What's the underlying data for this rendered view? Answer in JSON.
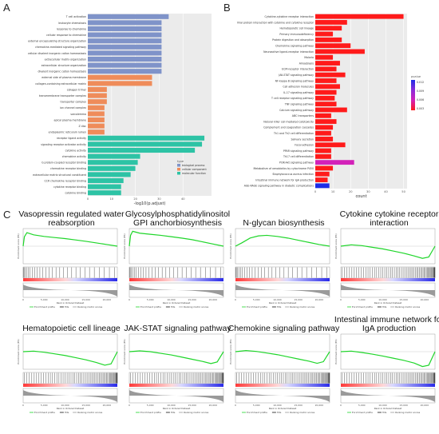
{
  "panels": {
    "a": "A",
    "b": "B",
    "c": "C"
  },
  "chart_data": [
    {
      "type": "bar",
      "orientation": "horizontal",
      "panel": "A",
      "xlabel": "-log10(p.adjust)",
      "xticks": [
        "0",
        "10",
        "20",
        "30",
        "40"
      ],
      "xlim": [
        0,
        52
      ],
      "legend": {
        "title": "type",
        "placement": "right",
        "entries": [
          {
            "name": "biological process",
            "color": "#7f93c9"
          },
          {
            "name": "cellular component",
            "color": "#ef8c5a"
          },
          {
            "name": "molecular function",
            "color": "#2dc3a5"
          }
        ]
      },
      "categories": [
        "T cell activation",
        "leukocyte chemotaxis",
        "response to chemokine",
        "cellular response to chemokine",
        "external encapsulating structure organization",
        "chemokine-mediated signaling pathway",
        "cellular divalent inorganic cation homeostasis",
        "extracellular matrix organization",
        "extracellular structure organization",
        "divalent inorganic cation homeostasis",
        "external side of plasma membrane",
        "collagen-containing extracellular matrix",
        "collagen trimer",
        "transmembrane transporter complex",
        "transporter complex",
        "ion channel complex",
        "sarcolemma",
        "apical plasma membrane",
        "Z disc",
        "endoplasmic reticulum lumen",
        "receptor ligand activity",
        "signaling receptor activator activity",
        "cytokine activity",
        "chemokine activity",
        "G protein-coupled receptor binding",
        "chemokine receptor binding",
        "extracellular matrix structural constituent",
        "CCR chemokine receptor binding",
        "cytokine receptor binding",
        "cytokine binding"
      ],
      "values": [
        34,
        31,
        31,
        31,
        31,
        31,
        31,
        31,
        31,
        31,
        27,
        27,
        8,
        8,
        8,
        7,
        7,
        7,
        7,
        7,
        49,
        48,
        45,
        22,
        21,
        20,
        18,
        15,
        14,
        14
      ],
      "groups": [
        "biological process",
        "biological process",
        "biological process",
        "biological process",
        "biological process",
        "biological process",
        "biological process",
        "biological process",
        "biological process",
        "biological process",
        "cellular component",
        "cellular component",
        "cellular component",
        "cellular component",
        "cellular component",
        "cellular component",
        "cellular component",
        "cellular component",
        "cellular component",
        "cellular component",
        "molecular function",
        "molecular function",
        "molecular function",
        "molecular function",
        "molecular function",
        "molecular function",
        "molecular function",
        "molecular function",
        "molecular function",
        "molecular function"
      ]
    },
    {
      "type": "bar",
      "orientation": "horizontal",
      "panel": "B",
      "xlabel": "count",
      "xticks": [
        "0",
        "10",
        "20",
        "30",
        "40",
        "50"
      ],
      "xlim": [
        0,
        52
      ],
      "legend": {
        "title": "pvalue",
        "placement": "right",
        "ticks": [
          "0.012",
          "0.009",
          "0.006",
          "0.003"
        ],
        "colors": [
          "#1d2de8",
          "#8c2bd9",
          "#d321b9",
          "#ff1a1a"
        ]
      },
      "categories": [
        "Cytokine-cytokine receptor interaction",
        "Viral protein interaction with cytokine and cytokine receptor",
        "Hematopoietic cell lineage",
        "Primary immunodeficiency",
        "Protein digestion and absorption",
        "Chemokine signaling pathway",
        "Neuroactive ligand-receptor interaction",
        "Malaria",
        "Amoebiasis",
        "ECM-receptor interaction",
        "JAK-STAT signaling pathway",
        "NF-kappa B signaling pathway",
        "Cell adhesion molecules",
        "IL-17 signaling pathway",
        "T cell receptor signaling pathway",
        "TNF signaling pathway",
        "Calcium signaling pathway",
        "ABC transporters",
        "Natural killer cell mediated cytotoxicity",
        "Complement and coagulation cascades",
        "Th1 and Th2 cell differentiation",
        "Salivary secretion",
        "Focal adhesion",
        "PPAR signaling pathway",
        "Th17 cell differentiation",
        "PI3K-Akt signaling pathway",
        "Metabolism of xenobiotics by cytochrome P450",
        "Staphylococcus aureus infection",
        "Intestinal immune network for IgA production",
        "AGE-RAGE signaling pathway in diabetic complications"
      ],
      "values": [
        50,
        18,
        15,
        10,
        15,
        20,
        28,
        10,
        14,
        12,
        17,
        12,
        14,
        12,
        11,
        12,
        18,
        9,
        12,
        10,
        9,
        10,
        17,
        9,
        9,
        22,
        10,
        8,
        7,
        8
      ],
      "pvalue_level": [
        0.003,
        0.003,
        0.003,
        0.003,
        0.003,
        0.003,
        0.003,
        0.003,
        0.003,
        0.003,
        0.003,
        0.003,
        0.003,
        0.003,
        0.003,
        0.003,
        0.003,
        0.003,
        0.003,
        0.003,
        0.003,
        0.003,
        0.003,
        0.003,
        0.003,
        0.006,
        0.003,
        0.003,
        0.003,
        0.012
      ]
    },
    {
      "type": "line",
      "panel": "C",
      "subtype": "gsea-enrichment",
      "ylabel": "Enrichment score (ES)",
      "xlabel": "Rank in Ordered Dataset",
      "ylabel2": "Ranked list metric (Signal2Noise)",
      "legend": [
        "Enrichment profile",
        "Hits",
        "Ranking metric scores"
      ],
      "xticks": [
        "0",
        "2,500",
        "5,000",
        "7,500",
        "10,000",
        "12,500",
        "15,000",
        "17,500",
        "20,000",
        "22,500"
      ],
      "plots": [
        {
          "title": "Vasopressin regulated water reabsorption",
          "direction": "up",
          "x": [
            0,
            300,
            900,
            2500,
            5000,
            7500,
            10000,
            12500,
            15000,
            17500,
            20000,
            22500
          ],
          "y": [
            0,
            0.35,
            0.5,
            0.42,
            0.36,
            0.32,
            0.28,
            0.23,
            0.18,
            0.12,
            0.06,
            0
          ]
        },
        {
          "title": "Glycosylphosphatidylinositol GPI anchorbiosynthesis",
          "direction": "up",
          "x": [
            0,
            300,
            800,
            2500,
            5000,
            7500,
            10000,
            12500,
            15000,
            17500,
            20000,
            22500
          ],
          "y": [
            0,
            0.4,
            0.55,
            0.48,
            0.44,
            0.4,
            0.35,
            0.3,
            0.24,
            0.16,
            0.08,
            0
          ]
        },
        {
          "title": "N-glycan biosynthesis",
          "direction": "up",
          "x": [
            0,
            1500,
            3500,
            5500,
            7500,
            10000,
            12500,
            15000,
            17500,
            20000,
            22500
          ],
          "y": [
            0,
            0.12,
            0.3,
            0.38,
            0.4,
            0.36,
            0.3,
            0.22,
            0.14,
            0.06,
            0
          ]
        },
        {
          "title": "Cytokine cytokine receptor interaction",
          "direction": "down",
          "x": [
            0,
            2500,
            5000,
            7500,
            10000,
            12500,
            15000,
            17500,
            19500,
            21000,
            22500
          ],
          "y": [
            0,
            0.05,
            0.02,
            -0.04,
            -0.1,
            -0.18,
            -0.26,
            -0.36,
            -0.45,
            -0.4,
            0
          ]
        },
        {
          "title": "Hematopoietic cell lineage",
          "direction": "down",
          "x": [
            0,
            2500,
            5000,
            7500,
            10000,
            12500,
            15000,
            17500,
            19500,
            21000,
            22500
          ],
          "y": [
            0,
            0.02,
            -0.02,
            -0.08,
            -0.14,
            -0.22,
            -0.3,
            -0.4,
            -0.5,
            -0.45,
            0
          ]
        },
        {
          "title": "JAK-STAT signaling pathway",
          "direction": "down",
          "x": [
            0,
            2500,
            5000,
            7500,
            10000,
            12500,
            15000,
            17500,
            19500,
            21000,
            22500
          ],
          "y": [
            0,
            0.03,
            0.0,
            -0.06,
            -0.12,
            -0.2,
            -0.28,
            -0.36,
            -0.44,
            -0.38,
            0
          ]
        },
        {
          "title": "Chemokine signaling pathway",
          "direction": "down",
          "x": [
            0,
            2500,
            5000,
            7500,
            10000,
            12500,
            15000,
            17500,
            19500,
            21000,
            22500
          ],
          "y": [
            0,
            0.04,
            0.01,
            -0.05,
            -0.11,
            -0.19,
            -0.27,
            -0.35,
            -0.43,
            -0.37,
            0
          ]
        },
        {
          "title": "Intestinal immune network for IgA production",
          "direction": "down",
          "x": [
            0,
            2500,
            5000,
            7500,
            10000,
            12500,
            15000,
            17500,
            19500,
            21000,
            22500
          ],
          "y": [
            0,
            0.02,
            -0.03,
            -0.09,
            -0.16,
            -0.24,
            -0.32,
            -0.42,
            -0.55,
            -0.5,
            0
          ]
        }
      ]
    }
  ]
}
